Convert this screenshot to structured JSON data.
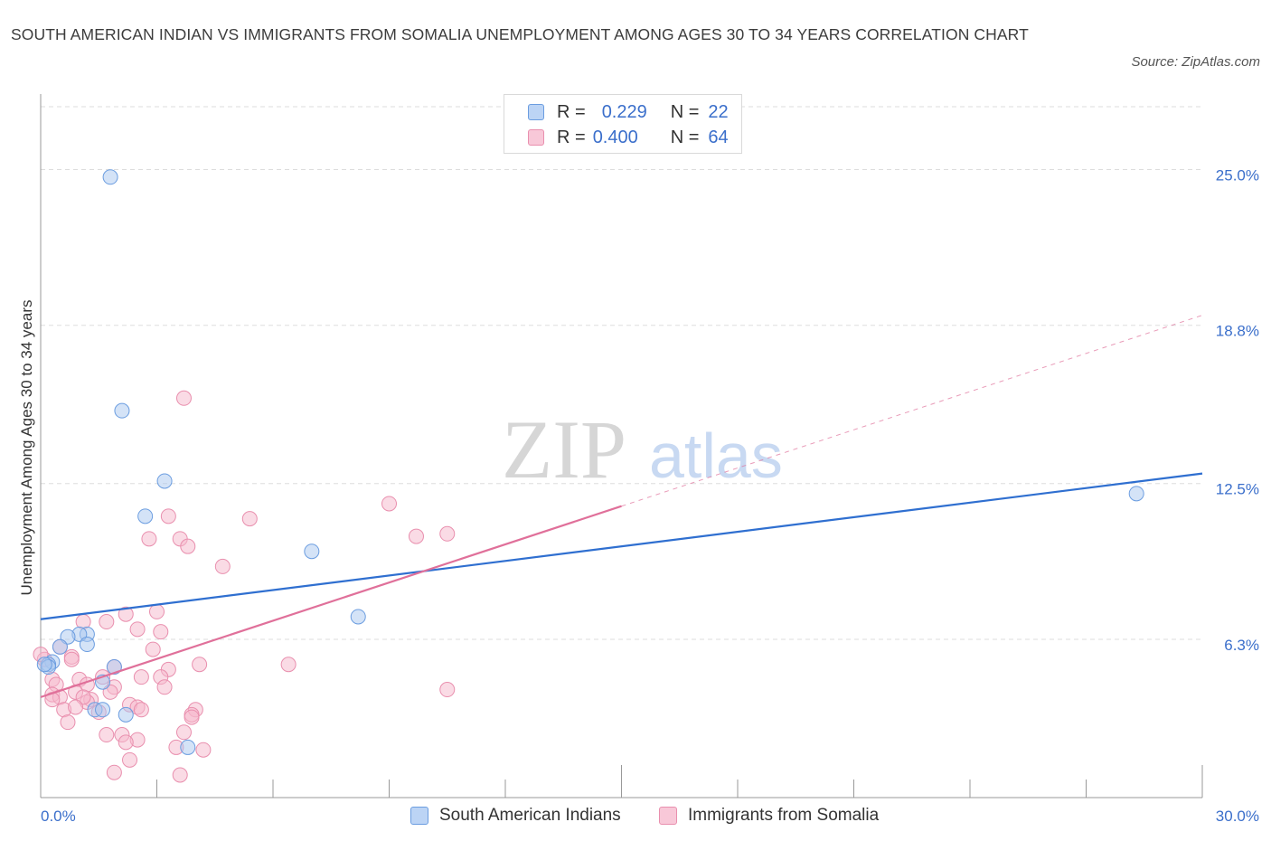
{
  "title": "SOUTH AMERICAN INDIAN VS IMMIGRANTS FROM SOMALIA UNEMPLOYMENT AMONG AGES 30 TO 34 YEARS CORRELATION CHART",
  "source": "Source: ZipAtlas.com",
  "watermark": {
    "zip": "ZIP",
    "atlas": "atlas"
  },
  "legend_stats": [
    {
      "r_label": "R =",
      "r_value": "0.229",
      "n_label": "N =",
      "n_value": "22"
    },
    {
      "r_label": "R =",
      "r_value": "0.400",
      "n_label": "N =",
      "n_value": "64"
    }
  ],
  "colors": {
    "blue_fill": "#aac8f0",
    "blue_stroke": "#6b9de0",
    "blue_line": "#2f6fd0",
    "pink_fill": "#f5b8cc",
    "pink_stroke": "#e98fae",
    "pink_line": "#e0709a",
    "grid": "#dddddd",
    "axis_text": "#3b6fcb"
  },
  "chart_data": {
    "type": "scatter",
    "title": "SOUTH AMERICAN INDIAN VS IMMIGRANTS FROM SOMALIA UNEMPLOYMENT AMONG AGES 30 TO 34 YEARS CORRELATION CHART",
    "xlabel": "",
    "ylabel": "Unemployment Among Ages 30 to 34 years",
    "xlim": [
      0,
      30
    ],
    "ylim": [
      0,
      27.5
    ],
    "x_tick_labels": [
      "0.0%",
      "30.0%"
    ],
    "y_ticks": [
      6.3,
      12.5,
      18.8,
      25.0
    ],
    "y_tick_labels": [
      "6.3%",
      "12.5%",
      "18.8%",
      "25.0%"
    ],
    "legend_position": "bottom",
    "series": [
      {
        "name": "South American Indians",
        "color": "blue",
        "r": 0.229,
        "n": 22,
        "trend": {
          "x": [
            0,
            30
          ],
          "y": [
            7.1,
            12.9
          ],
          "dashed_extension": false
        },
        "points": [
          [
            1.8,
            24.7
          ],
          [
            2.1,
            15.4
          ],
          [
            3.2,
            12.6
          ],
          [
            2.7,
            11.2
          ],
          [
            7.0,
            9.8
          ],
          [
            8.2,
            7.2
          ],
          [
            28.3,
            12.1
          ],
          [
            1.2,
            6.5
          ],
          [
            1.0,
            6.5
          ],
          [
            0.7,
            6.4
          ],
          [
            1.2,
            6.1
          ],
          [
            0.5,
            6.0
          ],
          [
            0.3,
            5.4
          ],
          [
            0.2,
            5.3
          ],
          [
            0.2,
            5.2
          ],
          [
            1.9,
            5.2
          ],
          [
            1.6,
            4.6
          ],
          [
            1.4,
            3.5
          ],
          [
            1.6,
            3.5
          ],
          [
            2.2,
            3.3
          ],
          [
            3.8,
            2.0
          ],
          [
            0.1,
            5.3
          ]
        ]
      },
      {
        "name": "Immigrants from Somalia",
        "color": "pink",
        "r": 0.4,
        "n": 64,
        "trend": {
          "x": [
            0,
            15
          ],
          "y": [
            4.0,
            11.6
          ],
          "dashed_to": [
            30,
            19.2
          ]
        },
        "points": [
          [
            3.7,
            15.9
          ],
          [
            9.0,
            11.7
          ],
          [
            5.4,
            11.1
          ],
          [
            3.3,
            11.2
          ],
          [
            10.5,
            10.5
          ],
          [
            9.7,
            10.4
          ],
          [
            2.8,
            10.3
          ],
          [
            3.6,
            10.3
          ],
          [
            3.8,
            10.0
          ],
          [
            4.7,
            9.2
          ],
          [
            3.0,
            7.4
          ],
          [
            2.2,
            7.3
          ],
          [
            1.7,
            7.0
          ],
          [
            1.1,
            7.0
          ],
          [
            2.5,
            6.7
          ],
          [
            3.1,
            6.6
          ],
          [
            2.9,
            5.9
          ],
          [
            0.5,
            6.0
          ],
          [
            0.8,
            5.6
          ],
          [
            0.8,
            5.5
          ],
          [
            4.1,
            5.3
          ],
          [
            6.4,
            5.3
          ],
          [
            3.3,
            5.1
          ],
          [
            1.9,
            5.2
          ],
          [
            2.6,
            4.8
          ],
          [
            3.1,
            4.8
          ],
          [
            1.6,
            4.8
          ],
          [
            1.0,
            4.7
          ],
          [
            0.3,
            4.7
          ],
          [
            0.4,
            4.5
          ],
          [
            1.2,
            4.5
          ],
          [
            1.9,
            4.4
          ],
          [
            3.2,
            4.4
          ],
          [
            10.5,
            4.3
          ],
          [
            1.8,
            4.2
          ],
          [
            0.9,
            4.2
          ],
          [
            0.3,
            4.1
          ],
          [
            0.5,
            4.0
          ],
          [
            0.3,
            3.9
          ],
          [
            1.3,
            3.9
          ],
          [
            1.2,
            3.8
          ],
          [
            2.3,
            3.7
          ],
          [
            2.5,
            3.6
          ],
          [
            2.6,
            3.5
          ],
          [
            0.6,
            3.5
          ],
          [
            1.5,
            3.4
          ],
          [
            4.0,
            3.5
          ],
          [
            3.9,
            3.3
          ],
          [
            3.9,
            3.2
          ],
          [
            0.7,
            3.0
          ],
          [
            1.7,
            2.5
          ],
          [
            3.7,
            2.6
          ],
          [
            2.1,
            2.5
          ],
          [
            2.5,
            2.3
          ],
          [
            2.2,
            2.2
          ],
          [
            3.5,
            2.0
          ],
          [
            4.2,
            1.9
          ],
          [
            2.3,
            1.5
          ],
          [
            1.9,
            1.0
          ],
          [
            3.6,
            0.9
          ],
          [
            0.1,
            5.5
          ],
          [
            0.0,
            5.7
          ],
          [
            1.1,
            4.0
          ],
          [
            0.9,
            3.6
          ]
        ]
      }
    ]
  },
  "bottom_legend": [
    "South American Indians",
    "Immigrants from Somalia"
  ]
}
